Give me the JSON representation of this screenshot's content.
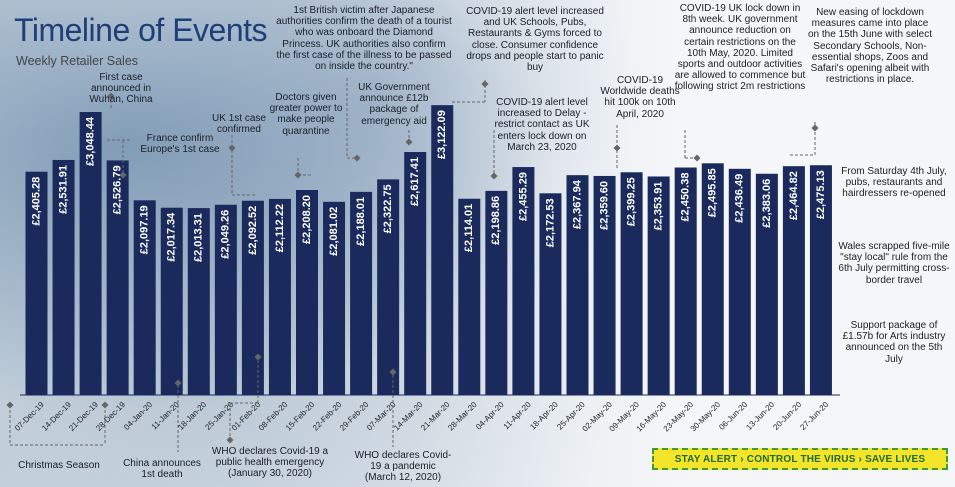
{
  "header": {
    "title": "Timeline of Events",
    "subtitle": "Weekly Retailer Sales"
  },
  "chart_data": {
    "type": "bar",
    "title": "Timeline of Events",
    "subtitle": "Weekly Retailer Sales",
    "categories": [
      "07-Dec-19",
      "14-Dec-19",
      "21-Dec-19",
      "28-Dec-19",
      "04-Jan-20",
      "11-Jan-20",
      "18-Jan-20",
      "25-Jan-20",
      "01-Feb-20",
      "08-Feb-20",
      "15-Feb-20",
      "22-Feb-20",
      "29-Feb-20",
      "07-Mar-20",
      "14-Mar-20",
      "21-Mar-20",
      "28-Mar-20",
      "04-Apr-20",
      "11-Apr-20",
      "18-Apr-20",
      "25-Apr-20",
      "02-May-20",
      "09-May-20",
      "16-May-20",
      "23-May-20",
      "30-May-20",
      "06-Jun-20",
      "13-Jun-20",
      "20-Jun-20",
      "27-Jun-20"
    ],
    "values": [
      2405.28,
      2531.91,
      3048.44,
      2526.79,
      2097.19,
      2017.34,
      2013.31,
      2049.26,
      2092.52,
      2112.22,
      2208.2,
      2081.02,
      2188.01,
      2322.75,
      2617.41,
      3122.09,
      2114.01,
      2198.86,
      2455.29,
      2172.53,
      2367.94,
      2359.6,
      2399.25,
      2353.91,
      2450.38,
      2495.85,
      2436.49,
      2383.06,
      2464.82,
      2475.13
    ],
    "value_labels": [
      "£2,405.28",
      "£2,531.91",
      "£3,048.44",
      "£2,526.79",
      "£2,097.19",
      "£2,017.34",
      "£2,013.31",
      "£2,049.26",
      "£2,092.52",
      "£2,112.22",
      "£2,208.20",
      "£2,081.02",
      "£2,188.01",
      "£2,322.75",
      "£2,617.41",
      "£3,122.09",
      "£2,114.01",
      "£2,198.86",
      "£2,455.29",
      "£2,172.53",
      "£2,367.94",
      "£2,359.60",
      "£2,399.25",
      "£2,353.91",
      "£2,450.38",
      "£2,495.85",
      "£2,436.49",
      "£2,383.06",
      "£2,464.82",
      "£2,475.13"
    ],
    "xlabel": "",
    "ylabel": "",
    "ylim": [
      0,
      3200
    ],
    "grid": false,
    "legend": "none",
    "bar_color": "#1a2a5c"
  },
  "annotations": [
    {
      "id": "first-case",
      "text": "First case announced in Wuhan, China"
    },
    {
      "id": "france",
      "text": "France confirm Europe's 1st case"
    },
    {
      "id": "uk-first",
      "text": "UK 1st case confirmed"
    },
    {
      "id": "doctors",
      "text": "Doctors given greater power to make people quarantine"
    },
    {
      "id": "british-victim",
      "text": "1st British victim after Japanese authorities confirm the death of a tourist who was onboard the Diamond Princess. UK authorities also confirm the first case of the illness to be passed on inside the country.\""
    },
    {
      "id": "uk-gov-12b",
      "text": "UK Government announce £12b package of emergency aid"
    },
    {
      "id": "alert-increased",
      "text": "COVID-19 alert level increased and UK Schools, Pubs, Restaurants & Gyms forced to close. Consumer confidence drops and people start to panic buy"
    },
    {
      "id": "delay",
      "text": "COVID-19 alert level increased to Delay - restrict contact as UK enters lock down on March 23, 2020"
    },
    {
      "id": "worldwide-deaths",
      "text": "COVID-19 Worldwide deaths hit 100k on 10th April, 2020"
    },
    {
      "id": "uk-lockdown-8th",
      "text": "COVID-19 UK lock down in 8th week. UK government announce reduction on certain restrictions on the 10th May, 2020. Limited sports and outdoor activities are allowed to commence but following strict 2m restrictions"
    },
    {
      "id": "new-easing",
      "text": "New easing of lockdown measures came into place on the 15th June with select Secondary Schools, Non-essential shops, Zoos and Safari's opening albeit with restrictions in place."
    },
    {
      "id": "pubs-reopen",
      "text": "From Saturday 4th July, pubs, restaurants and hairdressers re-opened"
    },
    {
      "id": "wales",
      "text": "Wales scrapped five-mile \"stay local\" rule from the 6th July permitting cross-border travel"
    },
    {
      "id": "arts",
      "text": "Support package of £1.57b for Arts industry announced on the 5th July"
    },
    {
      "id": "christmas",
      "text": "Christmas Season"
    },
    {
      "id": "china-death",
      "text": "China announces 1st death"
    },
    {
      "id": "who-emergency",
      "text": "WHO declares Covid-19 a public health emergency (January 30, 2020)"
    },
    {
      "id": "who-pandemic",
      "text": "WHO declares Covid-19 a pandemic (March 12, 2020)"
    }
  ],
  "banner": {
    "text": "STAY ALERT › CONTROL THE VIRUS › SAVE LIVES"
  }
}
